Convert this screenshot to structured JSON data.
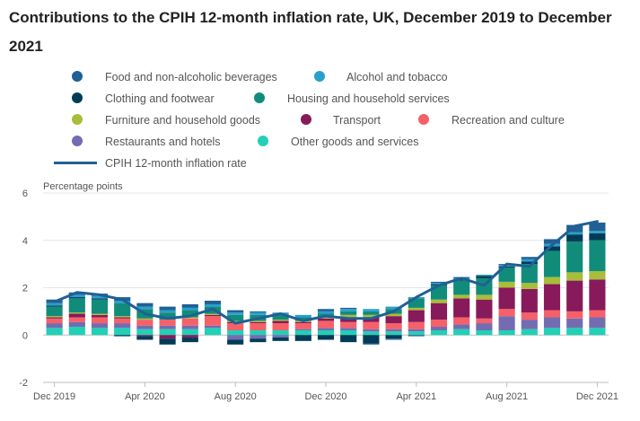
{
  "title": "Contributions to the CPIH 12-month inflation rate, UK, December 2019 to December 2021",
  "legend": [
    {
      "label": "Food and non-alcoholic beverages",
      "color": "#206095"
    },
    {
      "label": "Alcohol and tobacco",
      "color": "#27a0cc"
    },
    {
      "label": "Clothing and footwear",
      "color": "#003c57"
    },
    {
      "label": "Housing and household services",
      "color": "#118c7b"
    },
    {
      "label": "Furniture and household goods",
      "color": "#a8bd3a"
    },
    {
      "label": "Transport",
      "color": "#871a5b"
    },
    {
      "label": "Recreation and culture",
      "color": "#f66068"
    },
    {
      "label": "Restaurants and hotels",
      "color": "#746cb1"
    },
    {
      "label": "Other goods and services",
      "color": "#22d0b6"
    }
  ],
  "line_legend": {
    "label": "CPIH 12-month inflation rate",
    "color": "#206095"
  },
  "chart_data": {
    "type": "bar",
    "stacked": true,
    "ylabel": "Percentage points",
    "ylim": [
      -2,
      6
    ],
    "yticks": [
      "-2",
      "0",
      "2",
      "4",
      "6"
    ],
    "xtick_labels": [
      "Dec 2019",
      "Apr 2020",
      "Aug 2020",
      "Dec 2020",
      "Apr 2021",
      "Aug 2021",
      "Dec 2021"
    ],
    "xtick_index": [
      0,
      4,
      8,
      12,
      16,
      20,
      24
    ],
    "categories": [
      "Dec 2019",
      "Jan 2020",
      "Feb 2020",
      "Mar 2020",
      "Apr 2020",
      "May 2020",
      "Jun 2020",
      "Jul 2020",
      "Aug 2020",
      "Sep 2020",
      "Oct 2020",
      "Nov 2020",
      "Dec 2020",
      "Jan 2021",
      "Feb 2021",
      "Mar 2021",
      "Apr 2021",
      "May 2021",
      "Jun 2021",
      "Jul 2021",
      "Aug 2021",
      "Sep 2021",
      "Oct 2021",
      "Nov 2021",
      "Dec 2021"
    ],
    "series": [
      {
        "name": "Other goods and services",
        "values": [
          0.3,
          0.35,
          0.3,
          0.3,
          0.25,
          0.25,
          0.25,
          0.3,
          0.2,
          0.2,
          0.2,
          0.2,
          0.2,
          0.2,
          0.15,
          0.15,
          0.15,
          0.2,
          0.25,
          0.2,
          0.2,
          0.25,
          0.3,
          0.3,
          0.3
        ]
      },
      {
        "name": "Restaurants and hotels",
        "values": [
          0.2,
          0.2,
          0.2,
          0.2,
          0.15,
          0.15,
          0.15,
          0.1,
          -0.2,
          -0.15,
          -0.1,
          0.05,
          0.1,
          0.1,
          0.1,
          0.1,
          0.1,
          0.15,
          0.2,
          0.3,
          0.6,
          0.4,
          0.45,
          0.4,
          0.45
        ]
      },
      {
        "name": "Recreation and culture",
        "values": [
          0.2,
          0.2,
          0.25,
          0.2,
          0.25,
          0.25,
          0.3,
          0.4,
          0.3,
          0.3,
          0.3,
          0.25,
          0.3,
          0.25,
          0.3,
          0.25,
          0.3,
          0.3,
          0.3,
          0.2,
          0.3,
          0.3,
          0.3,
          0.3,
          0.3
        ]
      },
      {
        "name": "Transport",
        "values": [
          0.05,
          0.15,
          0.1,
          0.05,
          -0.05,
          -0.15,
          -0.1,
          0.05,
          0.05,
          0.05,
          0.1,
          0.05,
          0.1,
          0.2,
          0.2,
          0.3,
          0.5,
          0.7,
          0.8,
          0.8,
          0.9,
          1.0,
          1.1,
          1.3,
          1.3
        ]
      },
      {
        "name": "Furniture and household goods",
        "values": [
          0.05,
          0.05,
          0.05,
          0.05,
          0.05,
          0.0,
          0.05,
          0.05,
          0.05,
          0.05,
          0.05,
          0.05,
          0.05,
          0.1,
          0.1,
          0.1,
          0.1,
          0.15,
          0.15,
          0.2,
          0.25,
          0.25,
          0.3,
          0.35,
          0.35
        ]
      },
      {
        "name": "Housing and household services",
        "values": [
          0.4,
          0.6,
          0.6,
          0.55,
          0.4,
          0.3,
          0.3,
          0.3,
          0.25,
          0.25,
          0.2,
          0.15,
          0.15,
          0.15,
          0.15,
          0.2,
          0.4,
          0.6,
          0.6,
          0.7,
          0.6,
          0.8,
          1.1,
          1.3,
          1.3
        ]
      },
      {
        "name": "Clothing and footwear",
        "values": [
          0.05,
          0.05,
          0.05,
          -0.05,
          -0.15,
          -0.25,
          -0.2,
          0.0,
          -0.2,
          -0.15,
          -0.15,
          -0.25,
          -0.2,
          -0.3,
          -0.35,
          -0.15,
          0.0,
          0.05,
          0.05,
          0.1,
          0.05,
          0.1,
          0.2,
          0.3,
          0.3
        ]
      },
      {
        "name": "Alcohol and tobacco",
        "values": [
          0.1,
          0.1,
          0.1,
          0.1,
          0.1,
          0.1,
          0.1,
          0.1,
          0.1,
          0.1,
          0.1,
          0.1,
          0.1,
          0.1,
          0.1,
          0.1,
          0.05,
          0.05,
          0.05,
          0.05,
          0.05,
          0.1,
          0.1,
          0.1,
          0.1
        ]
      },
      {
        "name": "Food and non-alcoholic beverages",
        "values": [
          0.15,
          0.1,
          0.1,
          0.15,
          0.15,
          0.15,
          0.15,
          0.15,
          0.1,
          0.05,
          0.0,
          0.0,
          0.1,
          0.05,
          -0.05,
          -0.05,
          -0.05,
          0.05,
          0.05,
          0.0,
          0.05,
          0.1,
          0.2,
          0.3,
          0.35
        ]
      }
    ],
    "line": {
      "name": "CPIH 12-month inflation rate",
      "values": [
        1.4,
        1.8,
        1.7,
        1.5,
        0.9,
        0.7,
        0.8,
        1.1,
        0.5,
        0.7,
        0.9,
        0.6,
        0.8,
        0.7,
        0.7,
        1.0,
        1.6,
        2.1,
        2.4,
        2.1,
        3.0,
        2.9,
        3.8,
        4.6,
        4.8
      ]
    }
  }
}
